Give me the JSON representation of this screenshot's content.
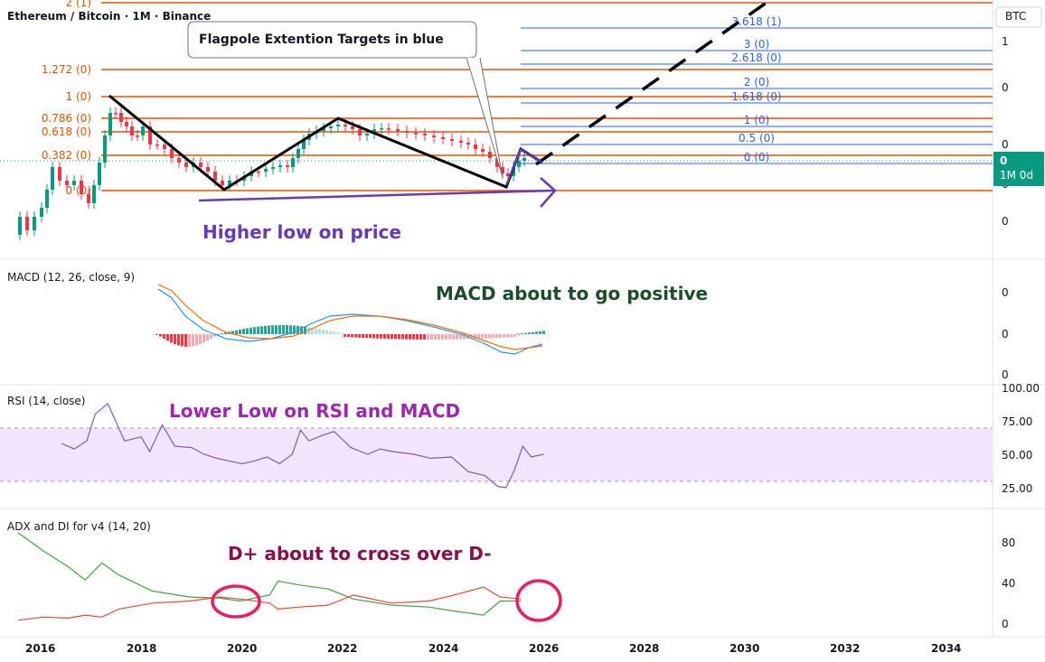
{
  "header": {
    "symbol_line": "Ethereum / Bitcoin · 1M · Binance",
    "currency": "BTC"
  },
  "price_scale_labels": [
    "1",
    "0",
    "0",
    "0",
    "0"
  ],
  "last_price_badge": {
    "value": "0",
    "countdown": "1M 0d",
    "color": "#089981"
  },
  "fib_left": [
    "2 (1)",
    "1.272 (0)",
    "1 (0)",
    "0.786 (0)",
    "0.618 (0)",
    "0.382 (0)",
    "0 (0)"
  ],
  "fib_right": [
    "3.618 (1)",
    "3 (0)",
    "2.618 (0)",
    "2 (0)",
    "1.618 (0)",
    "1 (0)",
    "0.5 (0)",
    "0 (0)"
  ],
  "annotations": {
    "callout": "Flagpole Extention Targets in blue",
    "higher_low": "Higher low on price",
    "macd_note": "MACD about to go positive",
    "rsi_note": "Lower Low on RSI and MACD",
    "adx_note": "D+ about to cross over D-"
  },
  "macd": {
    "title": "MACD (12, 26, close, 9)",
    "scale": [
      "0",
      "0",
      "0"
    ]
  },
  "rsi": {
    "title": "RSI (14, close)",
    "scale": [
      "100.00",
      "75.00",
      "50.00",
      "25.00"
    ]
  },
  "adx": {
    "title": "ADX and DI for v4 (14, 20)",
    "scale": [
      "80",
      "40",
      "0"
    ]
  },
  "x_axis": [
    "2016",
    "2018",
    "2020",
    "2022",
    "2024",
    "2026",
    "2028",
    "2030",
    "2032",
    "2034"
  ],
  "colors": {
    "up": "#089981",
    "down": "#f23645",
    "fib_orange": "#e65100",
    "fib_blue": "#2962ff",
    "purple": "#673ab7",
    "magenta": "#9c27b0",
    "pink": "#e91e63",
    "maroon": "#880e4f",
    "green_note": "#1b5e20"
  },
  "chart_data": {
    "type": "line",
    "x_axis": {
      "type": "date",
      "ticks": [
        "2016",
        "2018",
        "2020",
        "2022",
        "2024",
        "2026",
        "2028",
        "2030",
        "2032",
        "2034"
      ]
    },
    "panes": [
      {
        "name": "price",
        "series": "ETH/BTC monthly candles",
        "pattern": "higher low on price"
      },
      {
        "name": "macd",
        "params": "12, 26, close, 9"
      },
      {
        "name": "rsi",
        "params": "14, close",
        "band": [
          30,
          70
        ],
        "ylim": [
          0,
          100
        ]
      },
      {
        "name": "adx_di",
        "params": "14, 20",
        "ylim": [
          0,
          90
        ]
      }
    ],
    "rsi_values": [
      [
        "2016-06",
        58
      ],
      [
        "2016-09",
        54
      ],
      [
        "2016-12",
        60
      ],
      [
        "2017-02",
        80
      ],
      [
        "2017-05",
        88
      ],
      [
        "2017-09",
        60
      ],
      [
        "2018-01",
        63
      ],
      [
        "2018-03",
        52
      ],
      [
        "2018-06",
        72
      ],
      [
        "2018-09",
        56
      ],
      [
        "2019-01",
        55
      ],
      [
        "2019-04",
        50
      ],
      [
        "2019-07",
        47
      ],
      [
        "2019-10",
        45
      ],
      [
        "2020-01",
        43
      ],
      [
        "2020-04",
        45
      ],
      [
        "2020-07",
        48
      ],
      [
        "2020-10",
        43
      ],
      [
        "2021-01",
        50
      ],
      [
        "2021-03",
        68
      ],
      [
        "2021-05",
        60
      ],
      [
        "2021-08",
        64
      ],
      [
        "2021-11",
        67
      ],
      [
        "2022-03",
        55
      ],
      [
        "2022-07",
        50
      ],
      [
        "2022-10",
        54
      ],
      [
        "2023-01",
        52
      ],
      [
        "2023-06",
        50
      ],
      [
        "2023-10",
        47
      ],
      [
        "2024-03",
        48
      ],
      [
        "2024-07",
        37
      ],
      [
        "2024-11",
        34
      ],
      [
        "2025-02",
        26
      ],
      [
        "2025-04",
        25
      ],
      [
        "2025-06",
        38
      ],
      [
        "2025-08",
        56
      ],
      [
        "2025-10",
        48
      ],
      [
        "2026-01",
        50
      ]
    ],
    "di_plus": [
      [
        "2016-01",
        90
      ],
      [
        "2016-07",
        72
      ],
      [
        "2017-01",
        56
      ],
      [
        "2017-05",
        43
      ],
      [
        "2017-09",
        60
      ],
      [
        "2018-01",
        48
      ],
      [
        "2018-09",
        32
      ],
      [
        "2019-06",
        26
      ],
      [
        "2020-01",
        25
      ],
      [
        "2020-06",
        22
      ],
      [
        "2021-01",
        28
      ],
      [
        "2021-03",
        42
      ],
      [
        "2021-08",
        38
      ],
      [
        "2022-03",
        34
      ],
      [
        "2022-09",
        24
      ],
      [
        "2023-06",
        18
      ],
      [
        "2024-03",
        16
      ],
      [
        "2024-09",
        12
      ],
      [
        "2025-04",
        8
      ],
      [
        "2025-08",
        22
      ],
      [
        "2026-01",
        22
      ]
    ],
    "di_minus": [
      [
        "2016-01",
        3
      ],
      [
        "2016-07",
        6
      ],
      [
        "2017-01",
        5
      ],
      [
        "2017-05",
        8
      ],
      [
        "2017-09",
        6
      ],
      [
        "2018-01",
        14
      ],
      [
        "2018-09",
        20
      ],
      [
        "2019-06",
        22
      ],
      [
        "2020-01",
        26
      ],
      [
        "2020-06",
        24
      ],
      [
        "2021-01",
        20
      ],
      [
        "2021-03",
        14
      ],
      [
        "2021-08",
        16
      ],
      [
        "2022-03",
        18
      ],
      [
        "2022-09",
        28
      ],
      [
        "2023-06",
        20
      ],
      [
        "2024-03",
        22
      ],
      [
        "2024-09",
        28
      ],
      [
        "2025-04",
        36
      ],
      [
        "2025-08",
        26
      ],
      [
        "2026-01",
        24
      ]
    ]
  }
}
